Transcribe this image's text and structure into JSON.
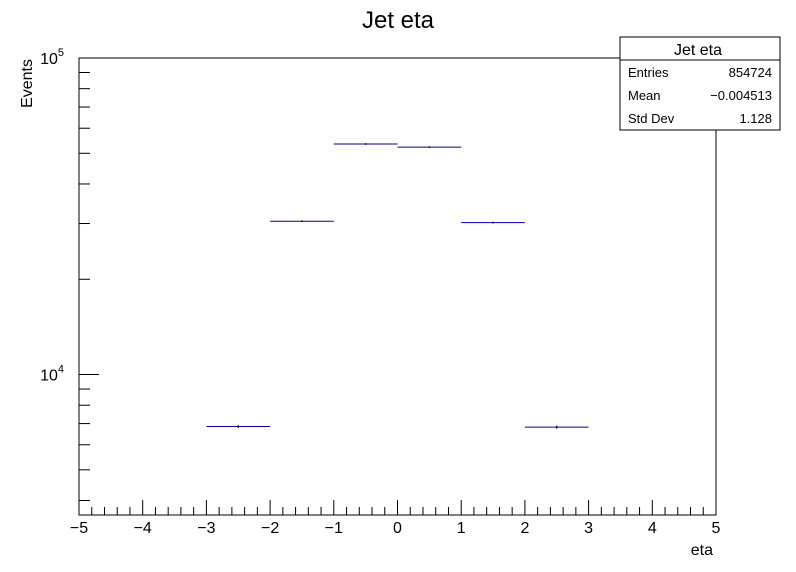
{
  "chart_data": {
    "type": "histogram",
    "title": "Jet eta",
    "xlabel": "eta",
    "ylabel": "Events",
    "xlim": [
      -5,
      5
    ],
    "ylim_log": [
      3600,
      100000
    ],
    "yscale": "log",
    "x_ticks": [
      "−5",
      "−4",
      "−3",
      "−2",
      "−1",
      "0",
      "1",
      "2",
      "3",
      "4",
      "5"
    ],
    "y_ticks": [
      {
        "base": "10",
        "exp": "4",
        "value": 10000
      },
      {
        "base": "10",
        "exp": "5",
        "value": 100000
      }
    ],
    "bins": [
      {
        "low": -3,
        "high": -2,
        "value": 6850
      },
      {
        "low": -2,
        "high": -1,
        "value": 30500
      },
      {
        "low": -1,
        "high": 0,
        "value": 53500
      },
      {
        "low": 0,
        "high": 1,
        "value": 52300
      },
      {
        "low": 1,
        "high": 2,
        "value": 30200
      },
      {
        "low": 2,
        "high": 3,
        "value": 6820
      }
    ],
    "line_color": "#000099",
    "stats": {
      "title": "Jet eta",
      "rows": [
        {
          "label": "Entries",
          "value": "854724"
        },
        {
          "label": "Mean",
          "value": "−0.004513"
        },
        {
          "label": "Std Dev",
          "value": "1.128"
        }
      ]
    }
  }
}
